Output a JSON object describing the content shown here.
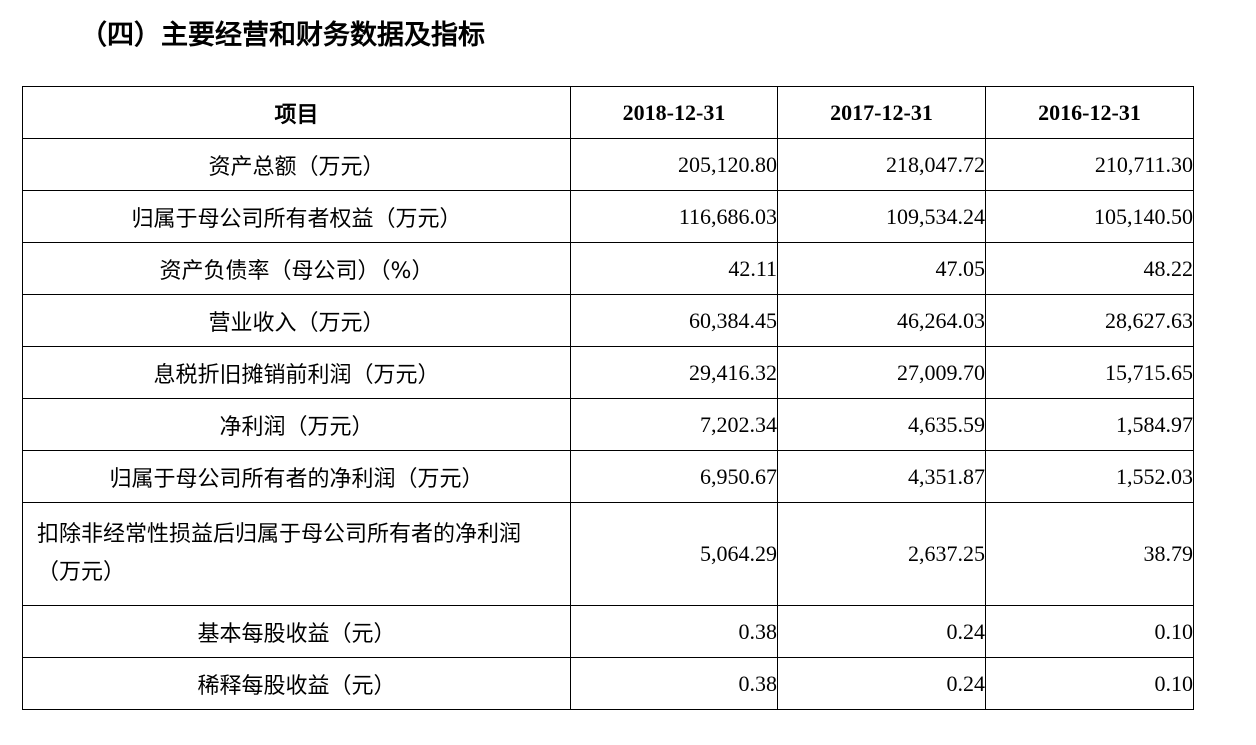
{
  "section_title": "（四）主要经营和财务数据及指标",
  "table": {
    "headers": [
      "项目",
      "2018-12-31",
      "2017-12-31",
      "2016-12-31"
    ],
    "rows": [
      {
        "label": "资产总额（万元）",
        "values": [
          "205,120.80",
          "218,047.72",
          "210,711.30"
        ]
      },
      {
        "label": "归属于母公司所有者权益（万元）",
        "values": [
          "116,686.03",
          "109,534.24",
          "105,140.50"
        ]
      },
      {
        "label": "资产负债率（母公司）（%）",
        "values": [
          "42.11",
          "47.05",
          "48.22"
        ]
      },
      {
        "label": "营业收入（万元）",
        "values": [
          "60,384.45",
          "46,264.03",
          "28,627.63"
        ]
      },
      {
        "label": "息税折旧摊销前利润（万元）",
        "values": [
          "29,416.32",
          "27,009.70",
          "15,715.65"
        ]
      },
      {
        "label": "净利润（万元）",
        "values": [
          "7,202.34",
          "4,635.59",
          "1,584.97"
        ]
      },
      {
        "label": "归属于母公司所有者的净利润（万元）",
        "values": [
          "6,950.67",
          "4,351.87",
          "1,552.03"
        ]
      },
      {
        "label": "扣除非经常性损益后归属于母公司所有者的净利润（万元）",
        "values": [
          "5,064.29",
          "2,637.25",
          "38.79"
        ]
      },
      {
        "label": "基本每股收益（元）",
        "values": [
          "0.38",
          "0.24",
          "0.10"
        ]
      },
      {
        "label": "稀释每股收益（元）",
        "values": [
          "0.38",
          "0.24",
          "0.10"
        ]
      }
    ]
  }
}
